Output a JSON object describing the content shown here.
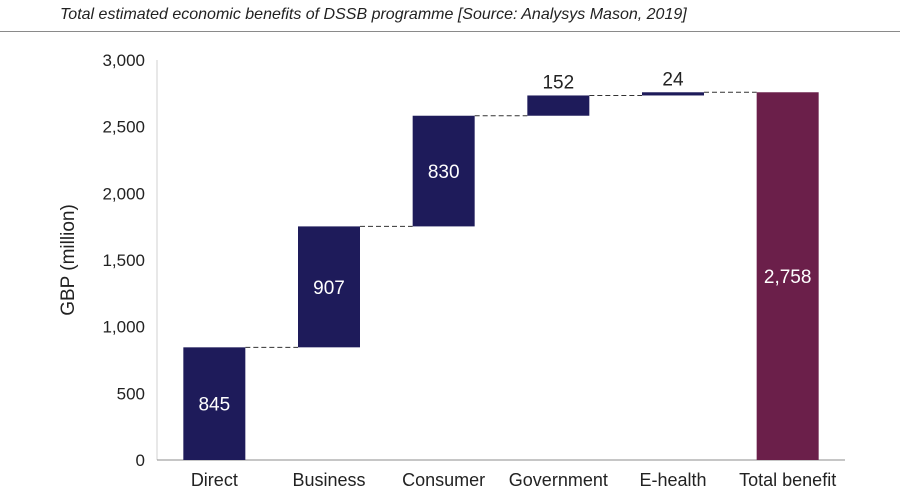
{
  "caption": "Total estimated economic benefits of DSSB programme [Source: Analysys Mason, 2019]",
  "chart_data": {
    "type": "bar",
    "subtype": "waterfall",
    "title": "Total estimated economic benefits of DSSB programme [Source: Analysys Mason, 2019]",
    "xlabel": "",
    "ylabel": "GBP (million)",
    "ylim": [
      0,
      3000
    ],
    "yticks": [
      0,
      500,
      1000,
      1500,
      2000,
      2500,
      3000
    ],
    "ytick_labels": [
      "0",
      "500",
      "1,000",
      "1,500",
      "2,000",
      "2,500",
      "3,000"
    ],
    "categories": [
      "Direct",
      "Business",
      "Consumer",
      "Government",
      "E-health",
      "Total benefit"
    ],
    "values": [
      845,
      907,
      830,
      152,
      24,
      2758
    ],
    "value_labels": [
      "845",
      "907",
      "830",
      "152",
      "24",
      "2,758"
    ],
    "is_total": [
      false,
      false,
      false,
      false,
      false,
      true
    ],
    "connectors": "dashed",
    "grid": false,
    "colors": {
      "increment": "#1e1b5a",
      "total": "#6b1f4a",
      "label_light": "#ffffff",
      "label_dark": "#222222"
    }
  }
}
